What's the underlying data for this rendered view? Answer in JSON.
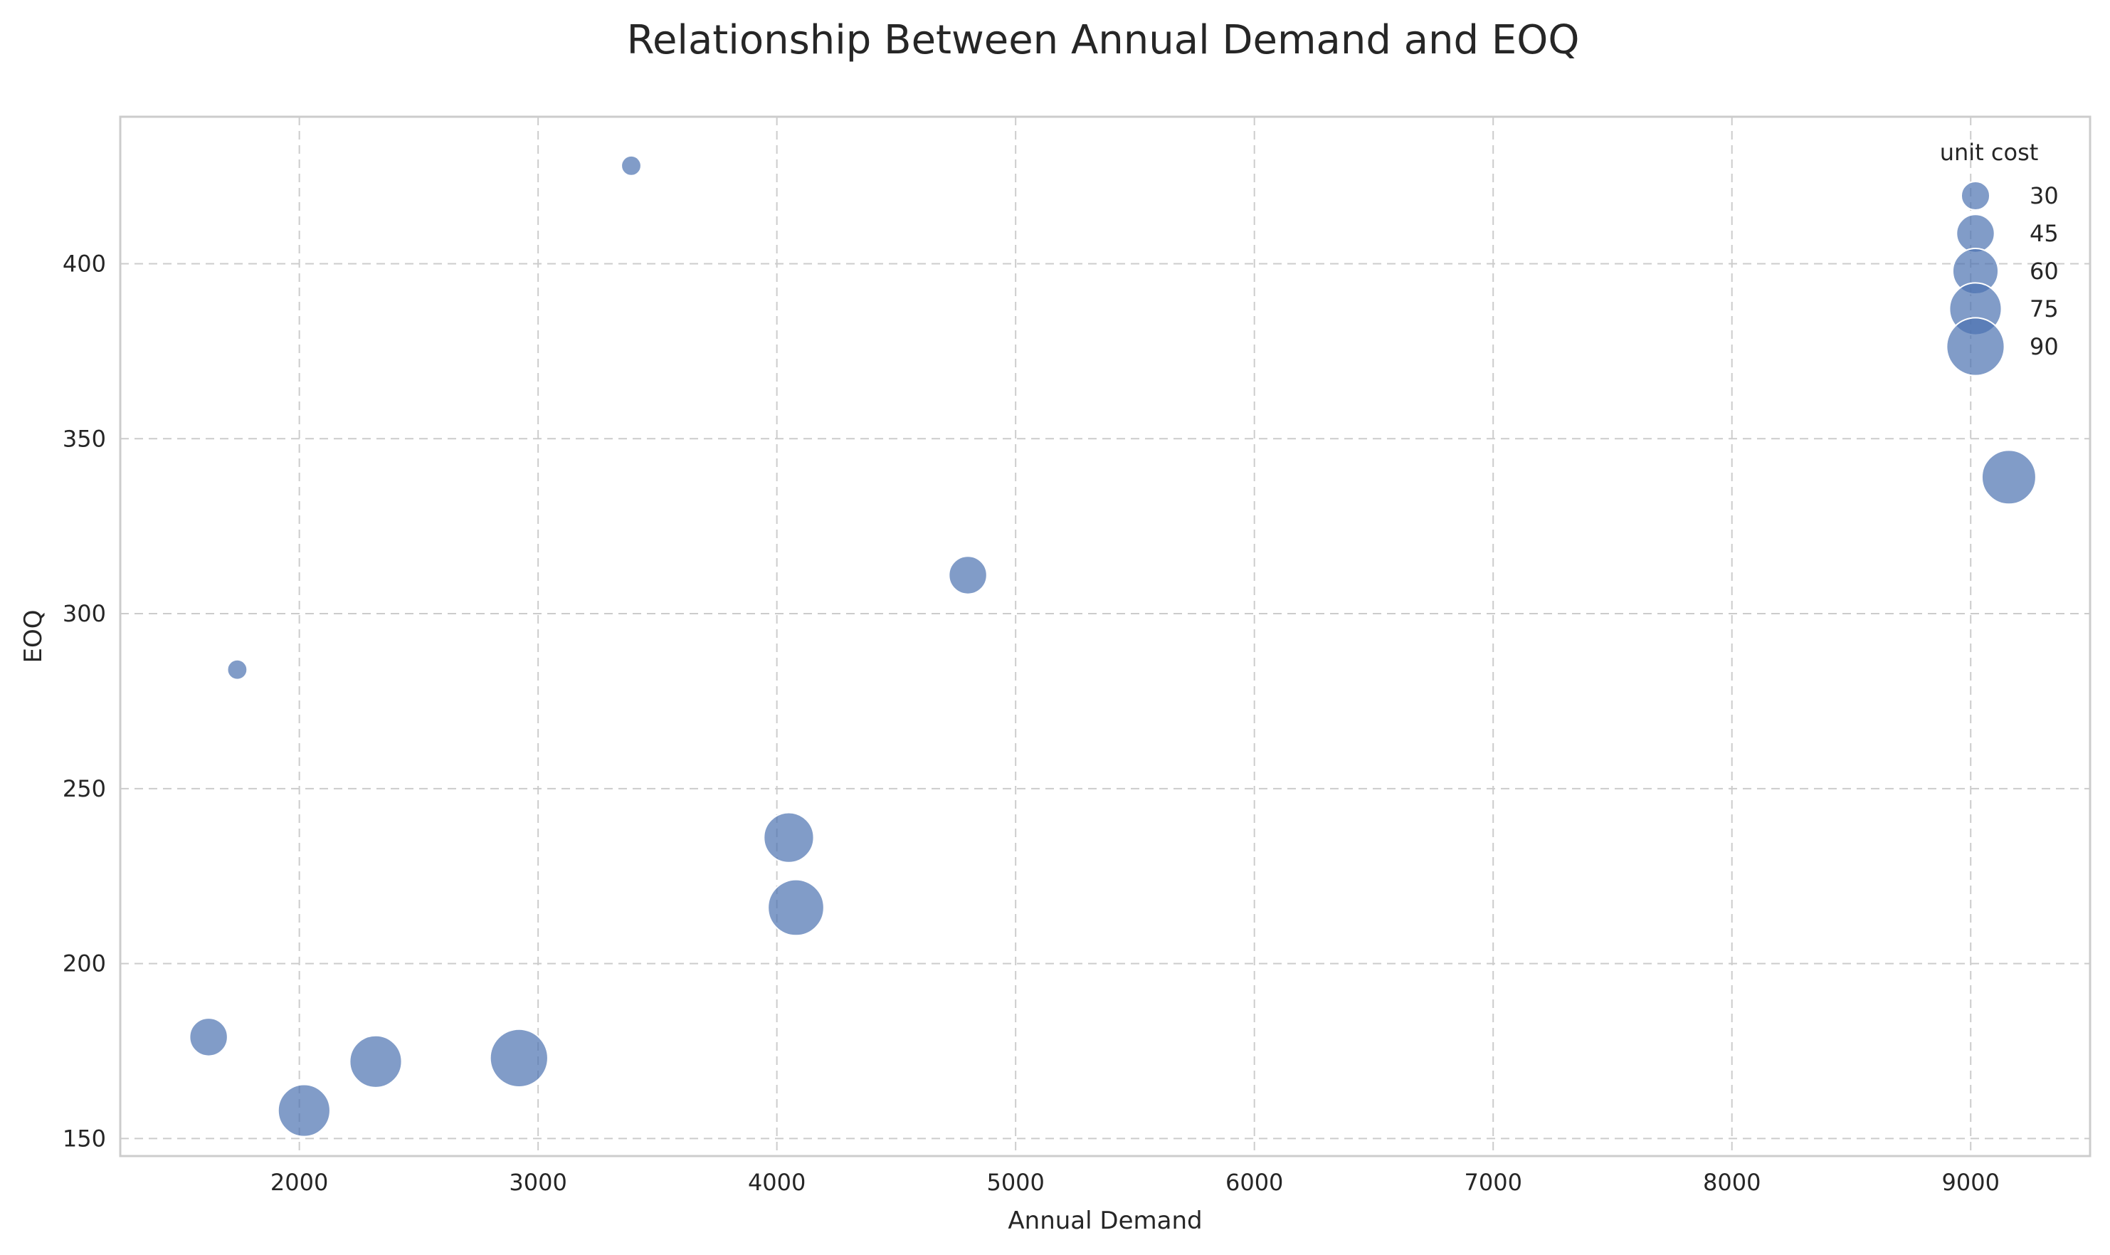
{
  "chart_data": {
    "type": "scatter",
    "title": "Relationship Between Annual Demand and EOQ",
    "xlabel": "Annual Demand",
    "ylabel": "EOQ",
    "xlim": [
      1250,
      9500
    ],
    "ylim": [
      145,
      442
    ],
    "xticks": [
      2000,
      3000,
      4000,
      5000,
      6000,
      7000,
      8000,
      9000
    ],
    "yticks": [
      150,
      200,
      250,
      300,
      350,
      400
    ],
    "grid": true,
    "marker_color": "#4c72b0",
    "size_legend": {
      "title": "unit cost",
      "placement": "top-right",
      "entries": [
        30,
        45,
        60,
        75,
        90
      ]
    },
    "points": [
      {
        "x": 1620,
        "y": 179,
        "unit_cost": 45
      },
      {
        "x": 1740,
        "y": 284,
        "unit_cost": 20
      },
      {
        "x": 2020,
        "y": 158,
        "unit_cost": 75
      },
      {
        "x": 2320,
        "y": 172,
        "unit_cost": 75
      },
      {
        "x": 2920,
        "y": 173,
        "unit_cost": 90
      },
      {
        "x": 3390,
        "y": 428,
        "unit_cost": 20
      },
      {
        "x": 4050,
        "y": 236,
        "unit_cost": 70
      },
      {
        "x": 4080,
        "y": 216,
        "unit_cost": 85
      },
      {
        "x": 4800,
        "y": 311,
        "unit_cost": 45
      },
      {
        "x": 9160,
        "y": 339,
        "unit_cost": 80
      }
    ]
  }
}
